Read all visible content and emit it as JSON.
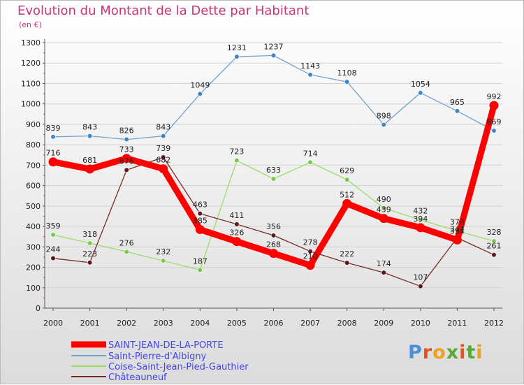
{
  "header": {
    "title": "Evolution du Montant de la Dette par Habitant",
    "subtitle": "(en €)"
  },
  "logo": {
    "text": "Proxiti",
    "colors": [
      "#4a8fd8",
      "#e8501c",
      "#f0a020",
      "#5aa83a",
      "#e8501c",
      "#5aa83a",
      "#e8a020"
    ]
  },
  "chart_data": {
    "type": "line",
    "title": "Evolution du Montant de la Dette par Habitant",
    "subtitle": "(en €)",
    "xlabel": "",
    "ylabel": "",
    "x": [
      "2000",
      "2001",
      "2002",
      "2003",
      "2004",
      "2005",
      "2006",
      "2007",
      "2008",
      "2009",
      "2010",
      "2011",
      "2012"
    ],
    "yticks": [
      "0",
      "100",
      "200",
      "300",
      "400",
      "500",
      "600",
      "700",
      "800",
      "900",
      "1000",
      "1100",
      "1200",
      "1300"
    ],
    "ylim": [
      0,
      1300
    ],
    "grid": "horizontal",
    "legend": "bottom-left",
    "series": [
      {
        "name": "SAINT-JEAN-DE-LA-PORTE",
        "color": "#ff0000",
        "legend_color": "#4444ee",
        "values": [
          716,
          681,
          733,
          682,
          385,
          326,
          268,
          210,
          512,
          439,
          394,
          334,
          992
        ],
        "labels": [
          "716",
          "681",
          "733",
          "682",
          "385",
          "326",
          "268",
          "210",
          "512",
          "439",
          "394",
          "334",
          "992"
        ]
      },
      {
        "name": "Saint-Pierre-d'Albigny",
        "color": "#6ea2cf",
        "legend_color": "#4444ee",
        "values": [
          839,
          843,
          826,
          843,
          1049,
          1231,
          1237,
          1143,
          1108,
          898,
          1054,
          965,
          869
        ],
        "labels": [
          "839",
          "843",
          "826",
          "843",
          "1049",
          "1231",
          "1237",
          "1143",
          "1108",
          "898",
          "1054",
          "965",
          "869"
        ]
      },
      {
        "name": "Coise-Saint-Jean-Pied-Gauthier",
        "color": "#99dd66",
        "legend_color": "#4444ee",
        "values": [
          359,
          318,
          276,
          232,
          187,
          723,
          633,
          714,
          629,
          490,
          432,
          378,
          328
        ],
        "labels": [
          "359",
          "318",
          "276",
          "232",
          "187",
          "723",
          "633",
          "714",
          "629",
          "490",
          "432",
          "378",
          "328"
        ]
      },
      {
        "name": "Châteauneuf",
        "color": "#7a2a2a",
        "legend_color": "#4444ee",
        "values": [
          244,
          223,
          676,
          739,
          463,
          411,
          356,
          278,
          222,
          174,
          107,
          344,
          261
        ],
        "labels": [
          "244",
          "223",
          "676",
          "739",
          "463",
          "411",
          "356",
          "278",
          "222",
          "174",
          "107",
          "344",
          "261"
        ]
      }
    ]
  }
}
